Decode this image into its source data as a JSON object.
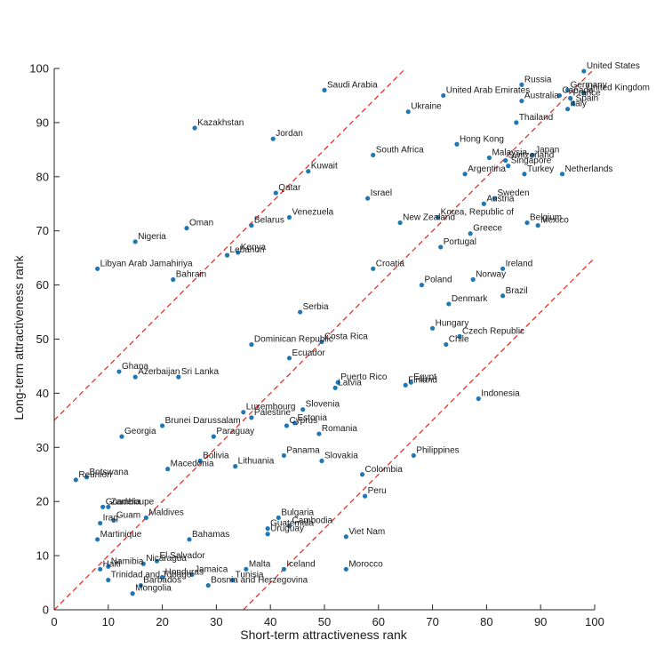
{
  "chart_data": {
    "type": "scatter",
    "xlabel": "Short-term attractiveness rank",
    "ylabel": "Long-term attractiveness rank",
    "xlim": [
      0,
      100
    ],
    "ylim": [
      0,
      100
    ],
    "x_ticks": [
      "0",
      "10",
      "20",
      "30",
      "40",
      "50",
      "60",
      "70",
      "80",
      "90",
      "100"
    ],
    "y_ticks": [
      "0",
      "10",
      "20",
      "30",
      "40",
      "50",
      "60",
      "70",
      "80",
      "90",
      "100"
    ],
    "grid": false,
    "point_color": "#1f77b4",
    "line_color": "#e8231b",
    "reference_lines": [
      {
        "intercept": 35,
        "slope": 1
      },
      {
        "intercept": 0,
        "slope": 1
      },
      {
        "intercept": -35,
        "slope": 1
      }
    ],
    "points": [
      {
        "label": "United States",
        "x": 98,
        "y": 99.5
      },
      {
        "label": "Russia",
        "x": 86.5,
        "y": 97
      },
      {
        "label": "Germany",
        "x": 95,
        "y": 96
      },
      {
        "label": "Canada",
        "x": 93.5,
        "y": 95
      },
      {
        "label": "France",
        "x": 95.5,
        "y": 94.5
      },
      {
        "label": "United Kingdom",
        "x": 98,
        "y": 95.5
      },
      {
        "label": "United Arab Emirates",
        "x": 72,
        "y": 95
      },
      {
        "label": "Saudi Arabia",
        "x": 50,
        "y": 96
      },
      {
        "label": "Australia",
        "x": 86.5,
        "y": 94
      },
      {
        "label": "Italy",
        "x": 95,
        "y": 92.5
      },
      {
        "label": "Spain",
        "x": 96,
        "y": 93.5
      },
      {
        "label": "Ukraine",
        "x": 65.5,
        "y": 92
      },
      {
        "label": "Thailand",
        "x": 85.5,
        "y": 90
      },
      {
        "label": "Kazakhstan",
        "x": 26,
        "y": 89
      },
      {
        "label": "Jordan",
        "x": 40.5,
        "y": 87
      },
      {
        "label": "Hong Kong",
        "x": 74.5,
        "y": 86
      },
      {
        "label": "South Africa",
        "x": 59,
        "y": 84
      },
      {
        "label": "Malaysia",
        "x": 80.5,
        "y": 83.5
      },
      {
        "label": "Japan",
        "x": 88.5,
        "y": 84
      },
      {
        "label": "Switzerland",
        "x": 83.5,
        "y": 83
      },
      {
        "label": "Singapore",
        "x": 84,
        "y": 82
      },
      {
        "label": "Kuwait",
        "x": 47,
        "y": 81
      },
      {
        "label": "Argentina",
        "x": 76,
        "y": 80.5
      },
      {
        "label": "Turkey",
        "x": 87,
        "y": 80.5
      },
      {
        "label": "Netherlands",
        "x": 94,
        "y": 80.5
      },
      {
        "label": "Qatar",
        "x": 41,
        "y": 77
      },
      {
        "label": "Israel",
        "x": 58,
        "y": 76
      },
      {
        "label": "Sweden",
        "x": 81.5,
        "y": 76
      },
      {
        "label": "Austria",
        "x": 79.5,
        "y": 75
      },
      {
        "label": "Venezuela",
        "x": 43.5,
        "y": 72.5
      },
      {
        "label": "Korea, Republic of",
        "x": 71,
        "y": 72.5
      },
      {
        "label": "Belarus",
        "x": 36.5,
        "y": 71
      },
      {
        "label": "New Zealand",
        "x": 64,
        "y": 71.5
      },
      {
        "label": "Belgium",
        "x": 87.5,
        "y": 71.5
      },
      {
        "label": "Mexico",
        "x": 89.5,
        "y": 71
      },
      {
        "label": "Oman",
        "x": 24.5,
        "y": 70.5
      },
      {
        "label": "Greece",
        "x": 77,
        "y": 69.5
      },
      {
        "label": "Nigeria",
        "x": 15,
        "y": 68
      },
      {
        "label": "Portugal",
        "x": 71.5,
        "y": 67
      },
      {
        "label": "Kenya",
        "x": 34,
        "y": 66
      },
      {
        "label": "Lebanon",
        "x": 32,
        "y": 65.5
      },
      {
        "label": "Libyan Arab Jamahiriya",
        "x": 8,
        "y": 63
      },
      {
        "label": "Croatia",
        "x": 59,
        "y": 63
      },
      {
        "label": "Ireland",
        "x": 83,
        "y": 63
      },
      {
        "label": "Bahrain",
        "x": 22,
        "y": 61
      },
      {
        "label": "Norway",
        "x": 77.5,
        "y": 61
      },
      {
        "label": "Poland",
        "x": 68,
        "y": 60
      },
      {
        "label": "Brazil",
        "x": 83,
        "y": 58
      },
      {
        "label": "Denmark",
        "x": 73,
        "y": 56.5
      },
      {
        "label": "Serbia",
        "x": 45.5,
        "y": 55
      },
      {
        "label": "Hungary",
        "x": 70,
        "y": 52
      },
      {
        "label": "Czech Republic",
        "x": 75,
        "y": 50.5
      },
      {
        "label": "Dominican Republic",
        "x": 36.5,
        "y": 49
      },
      {
        "label": "Costa Rica",
        "x": 49.5,
        "y": 49.5
      },
      {
        "label": "Chile",
        "x": 72.5,
        "y": 49
      },
      {
        "label": "Ecuador",
        "x": 43.5,
        "y": 46.5
      },
      {
        "label": "Ghana",
        "x": 12,
        "y": 44
      },
      {
        "label": "Azerbaijan",
        "x": 15,
        "y": 43
      },
      {
        "label": "Sri Lanka",
        "x": 23,
        "y": 43
      },
      {
        "label": "Puerto Rico",
        "x": 52.5,
        "y": 42
      },
      {
        "label": "Egypt",
        "x": 66,
        "y": 42
      },
      {
        "label": "Finland",
        "x": 65,
        "y": 41.5
      },
      {
        "label": "Latvia",
        "x": 52,
        "y": 41
      },
      {
        "label": "Indonesia",
        "x": 78.5,
        "y": 39
      },
      {
        "label": "Slovenia",
        "x": 46,
        "y": 37
      },
      {
        "label": "Luxembourg",
        "x": 35,
        "y": 36.5
      },
      {
        "label": "Palestine",
        "x": 36.5,
        "y": 35.5
      },
      {
        "label": "Estonia",
        "x": 44.5,
        "y": 34.5
      },
      {
        "label": "Brunei Darussalam",
        "x": 20,
        "y": 34
      },
      {
        "label": "Cyprus",
        "x": 43,
        "y": 34
      },
      {
        "label": "Romania",
        "x": 49,
        "y": 32.5
      },
      {
        "label": "Georgia",
        "x": 12.5,
        "y": 32
      },
      {
        "label": "Paraguay",
        "x": 29.5,
        "y": 32
      },
      {
        "label": "Philippines",
        "x": 66.5,
        "y": 28.5
      },
      {
        "label": "Panama",
        "x": 42.5,
        "y": 28.5
      },
      {
        "label": "Bolivia",
        "x": 27,
        "y": 27.5
      },
      {
        "label": "Slovakia",
        "x": 49.5,
        "y": 27.5
      },
      {
        "label": "Lithuania",
        "x": 33.5,
        "y": 26.5
      },
      {
        "label": "Macedonia",
        "x": 21,
        "y": 26
      },
      {
        "label": "Colombia",
        "x": 57,
        "y": 25
      },
      {
        "label": "Botswana",
        "x": 6,
        "y": 24.5
      },
      {
        "label": "Reunion",
        "x": 4,
        "y": 24
      },
      {
        "label": "Peru",
        "x": 57.5,
        "y": 21
      },
      {
        "label": "Guadeloupe",
        "x": 9,
        "y": 19
      },
      {
        "label": "Zambia",
        "x": 10,
        "y": 19
      },
      {
        "label": "Bulgaria",
        "x": 41.5,
        "y": 17
      },
      {
        "label": "Maldives",
        "x": 17,
        "y": 17
      },
      {
        "label": "Guam",
        "x": 11,
        "y": 16.5
      },
      {
        "label": "Iraq",
        "x": 8.5,
        "y": 16
      },
      {
        "label": "Cambodia",
        "x": 43.5,
        "y": 15.5
      },
      {
        "label": "Guatemala",
        "x": 39.5,
        "y": 15
      },
      {
        "label": "Uruguay",
        "x": 39.5,
        "y": 14
      },
      {
        "label": "Viet Nam",
        "x": 54,
        "y": 13.5
      },
      {
        "label": "Bahamas",
        "x": 25,
        "y": 13
      },
      {
        "label": "Martinique",
        "x": 8,
        "y": 13
      },
      {
        "label": "El Salvador",
        "x": 19,
        "y": 9
      },
      {
        "label": "Haiti",
        "x": 8.5,
        "y": 7.5
      },
      {
        "label": "Namibia",
        "x": 10,
        "y": 8
      },
      {
        "label": "Nicaragua",
        "x": 16.5,
        "y": 8.5
      },
      {
        "label": "Jamaica",
        "x": 25.5,
        "y": 6.5
      },
      {
        "label": "Malta",
        "x": 35.5,
        "y": 7.5
      },
      {
        "label": "Iceland",
        "x": 42.5,
        "y": 7.5
      },
      {
        "label": "Morocco",
        "x": 54,
        "y": 7.5
      },
      {
        "label": "Honduras",
        "x": 20,
        "y": 6
      },
      {
        "label": "Trinidad and Tobago",
        "x": 10,
        "y": 5.5
      },
      {
        "label": "Tunisia",
        "x": 33,
        "y": 5.5
      },
      {
        "label": "Barbados",
        "x": 16,
        "y": 4.5
      },
      {
        "label": "Bosnia and Herzegovina",
        "x": 28.5,
        "y": 4.5
      },
      {
        "label": "Mongolia",
        "x": 14.5,
        "y": 3
      }
    ]
  }
}
